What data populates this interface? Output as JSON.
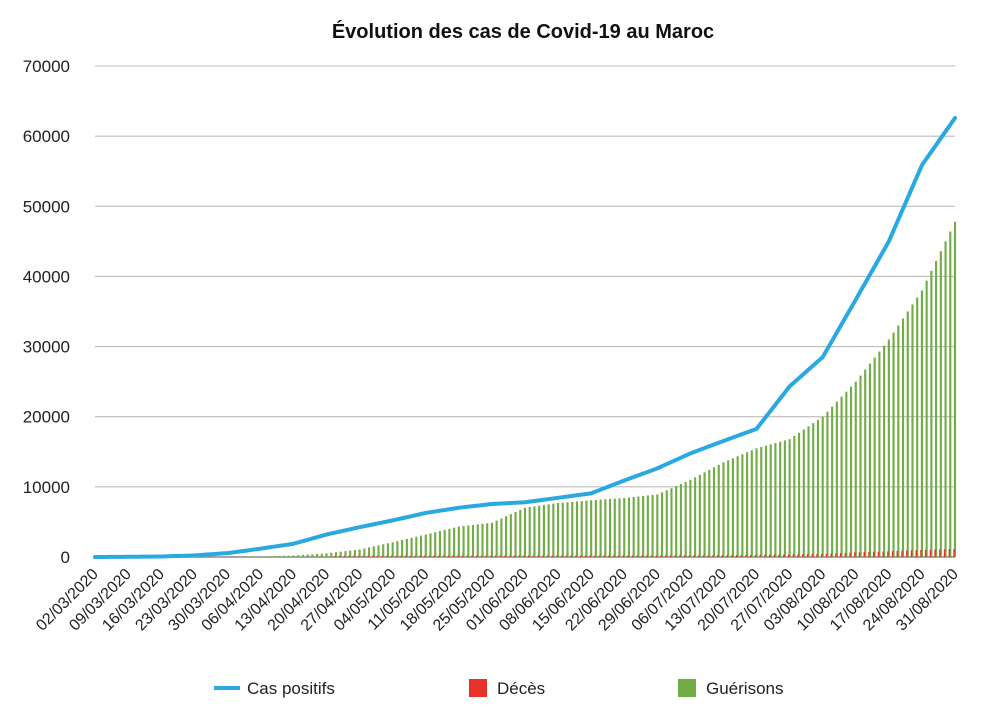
{
  "chart_data": {
    "type": "bar+line",
    "title": "Évolution des cas de Covid-19 au Maroc",
    "xlabel": "",
    "ylabel": "",
    "ylim": [
      0,
      70000
    ],
    "y_ticks": [
      0,
      10000,
      20000,
      30000,
      40000,
      50000,
      60000,
      70000
    ],
    "x_tick_labels": [
      "02/03/2020",
      "09/03/2020",
      "16/03/2020",
      "23/03/2020",
      "30/03/2020",
      "06/04/2020",
      "13/04/2020",
      "20/04/2020",
      "27/04/2020",
      "04/05/2020",
      "11/05/2020",
      "18/05/2020",
      "25/05/2020",
      "01/06/2020",
      "08/06/2020",
      "15/06/2020",
      "22/06/2020",
      "29/06/2020",
      "06/07/2020",
      "13/07/2020",
      "20/07/2020",
      "27/07/2020",
      "03/08/2020",
      "10/08/2020",
      "17/08/2020",
      "24/08/2020",
      "31/08/2020"
    ],
    "grid": true,
    "legend_position": "bottom",
    "series": [
      {
        "name": "Cas positifs",
        "kind": "line",
        "color": "#29a9e0",
        "weekly_values": [
          1,
          28,
          75,
          225,
          556,
          1184,
          1888,
          3209,
          4252,
          5219,
          6281,
          7023,
          7556,
          7807,
          8437,
          9074,
          10907,
          12636,
          14771,
          16545,
          18264,
          24322,
          28500,
          36694,
          45000,
          55864,
          62590
        ]
      },
      {
        "name": "Décès",
        "kind": "bar",
        "color": "#e8312b",
        "weekly_values": [
          0,
          1,
          5,
          26,
          36,
          93,
          126,
          145,
          165,
          181,
          188,
          200,
          202,
          208,
          211,
          213,
          216,
          228,
          240,
          260,
          285,
          367,
          417,
          658,
          800,
          1000,
          1141
        ]
      },
      {
        "name": "Guérisons",
        "kind": "bar",
        "color": "#71ac44",
        "weekly_values": [
          0,
          1,
          3,
          6,
          11,
          66,
          217,
          514,
          1074,
          2104,
          3212,
          4344,
          4881,
          7025,
          7700,
          8092,
          8407,
          8920,
          11000,
          13500,
          15500,
          16800,
          20000,
          25000,
          31000,
          38000,
          47800
        ]
      }
    ]
  }
}
